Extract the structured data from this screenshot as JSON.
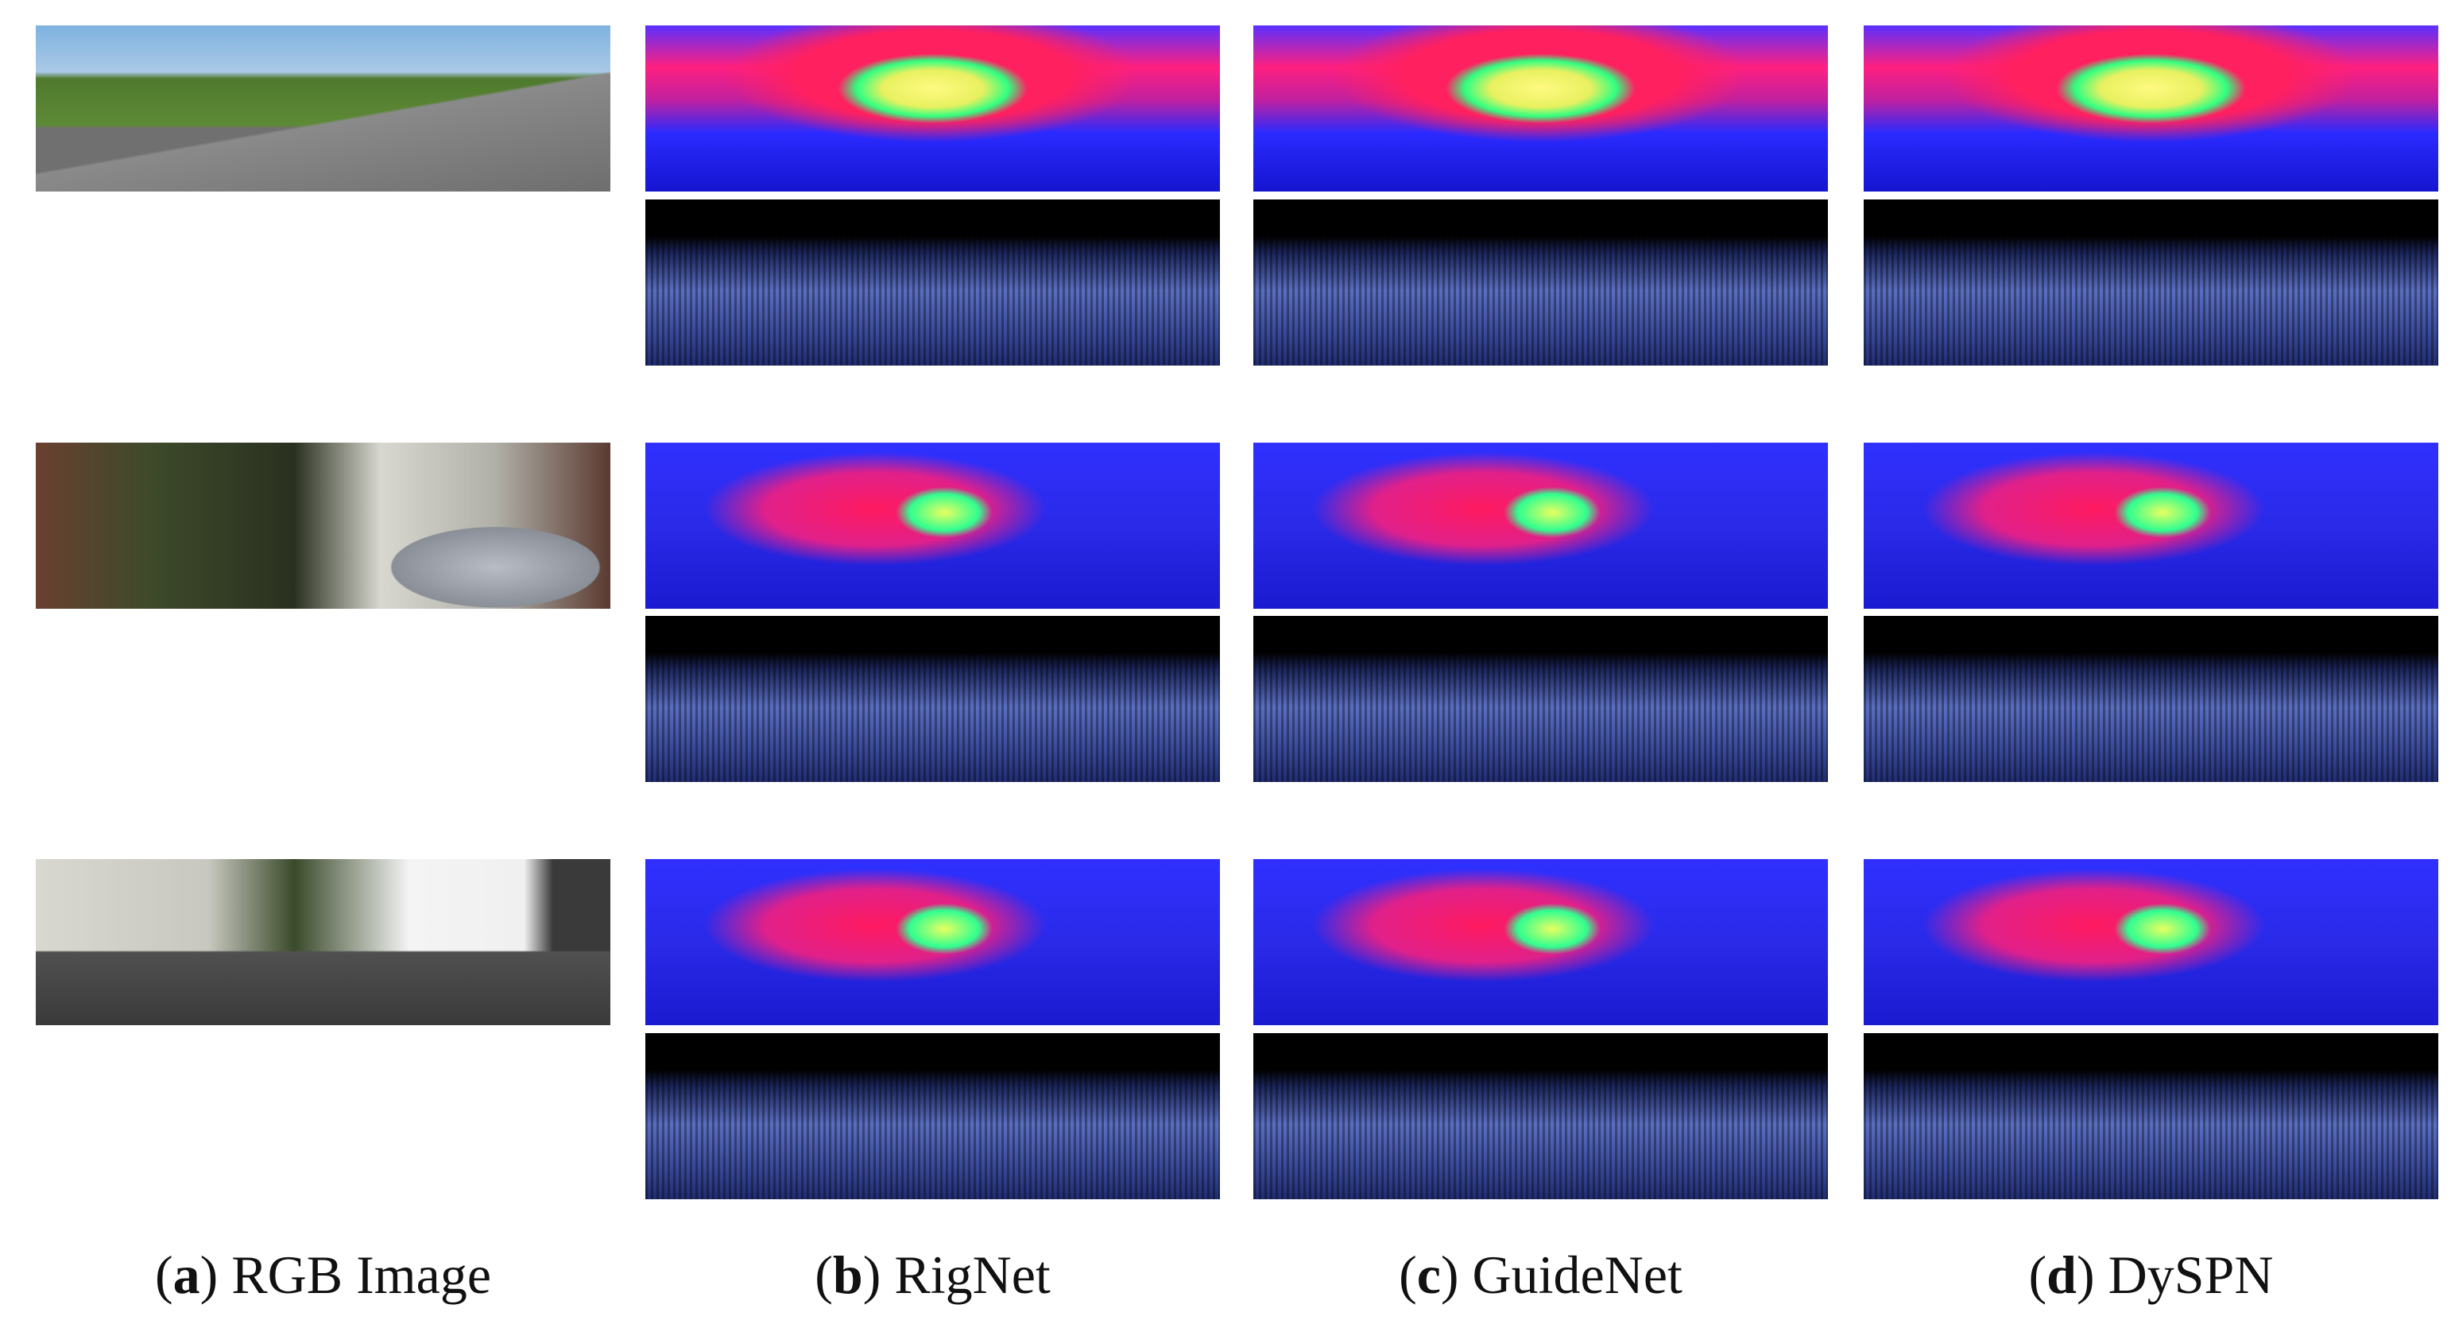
{
  "captions": [
    {
      "parts": [
        "(",
        "a",
        ") RGB Image"
      ]
    },
    {
      "parts": [
        "(",
        "b",
        ") RigNet"
      ]
    },
    {
      "parts": [
        "(",
        "c",
        ") GuideNet"
      ]
    },
    {
      "parts": [
        "(",
        "d",
        ") DySPN"
      ]
    }
  ]
}
